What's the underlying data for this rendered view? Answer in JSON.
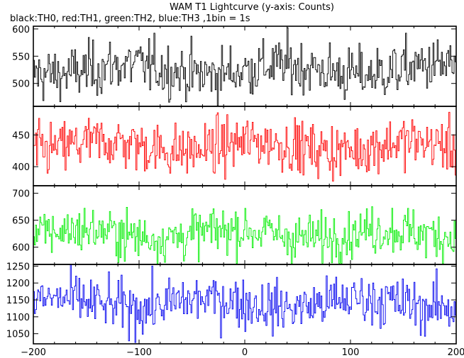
{
  "chart_data": {
    "type": "line",
    "title": "WAM T1 Lightcurve (y-axis: Counts)",
    "subtitle": "black:TH0, red:TH1, green:TH2, blue:TH3 ,1bin = 1s",
    "x_range": [
      -200,
      200
    ],
    "x_ticks": [
      -200,
      -100,
      0,
      100,
      200
    ],
    "bin_seconds": 1,
    "series": [
      {
        "name": "TH0",
        "color": "#000000",
        "ylim": [
          458,
          605
        ],
        "y_ticks": [
          500,
          550,
          600
        ],
        "mean": 525,
        "std": 25
      },
      {
        "name": "TH1",
        "color": "#ff0000",
        "ylim": [
          370,
          495
        ],
        "y_ticks": [
          400,
          450
        ],
        "mean": 432,
        "std": 21
      },
      {
        "name": "TH2",
        "color": "#00ee00",
        "ylim": [
          568,
          714
        ],
        "y_ticks": [
          600,
          650,
          700
        ],
        "mean": 625,
        "std": 22
      },
      {
        "name": "TH3",
        "color": "#0000ee",
        "ylim": [
          1020,
          1255
        ],
        "y_ticks": [
          1050,
          1100,
          1150,
          1200,
          1250
        ],
        "mean": 1140,
        "std": 38
      }
    ]
  }
}
